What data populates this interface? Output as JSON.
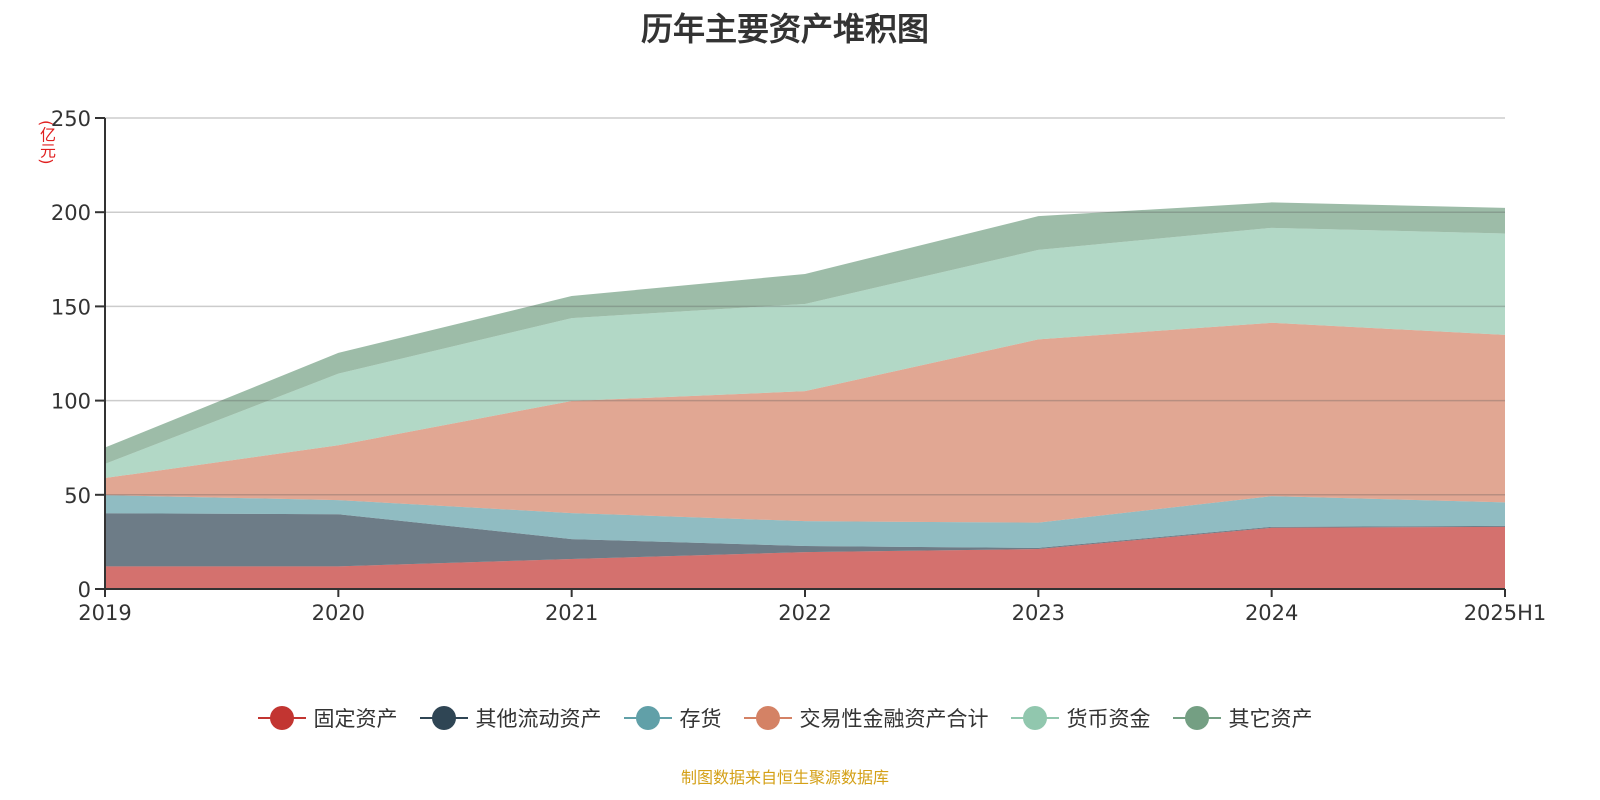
{
  "chart_data": {
    "type": "area",
    "stacked": true,
    "title": "历年主要资产堆积图",
    "ylabel": "(亿元)",
    "xlabel": "",
    "categories": [
      "2019",
      "2020",
      "2021",
      "2022",
      "2023",
      "2024",
      "2025H1"
    ],
    "ylim": [
      0,
      250
    ],
    "yticks": [
      0,
      50,
      100,
      150,
      200,
      250
    ],
    "grid": true,
    "legend_position": "bottom",
    "series": [
      {
        "name": "固定资产",
        "color": "#c23531",
        "values": [
          12.0,
          12.0,
          15.9,
          19.6,
          21.2,
          32.5,
          33.0
        ]
      },
      {
        "name": "其他流动资产",
        "color": "#2f4554",
        "values": [
          28.2,
          27.7,
          10.6,
          3.2,
          0.6,
          0.5,
          0.5
        ]
      },
      {
        "name": "存货",
        "color": "#61a0a8",
        "values": [
          9.6,
          7.5,
          13.8,
          13.2,
          13.4,
          16.3,
          12.5
        ]
      },
      {
        "name": "交易性金融资产合计",
        "color": "#d48265",
        "values": [
          9.1,
          29.1,
          59.5,
          69.0,
          97.3,
          92.0,
          88.9
        ]
      },
      {
        "name": "货币资金",
        "color": "#91c7ae",
        "values": [
          7.5,
          38.0,
          44.0,
          46.3,
          47.5,
          50.4,
          53.8
        ]
      },
      {
        "name": "其它资产",
        "color": "#749f83",
        "values": [
          8.7,
          11.0,
          11.7,
          15.9,
          17.9,
          13.5,
          13.6
        ]
      }
    ]
  },
  "footer": "制图数据来自恒生聚源数据库"
}
